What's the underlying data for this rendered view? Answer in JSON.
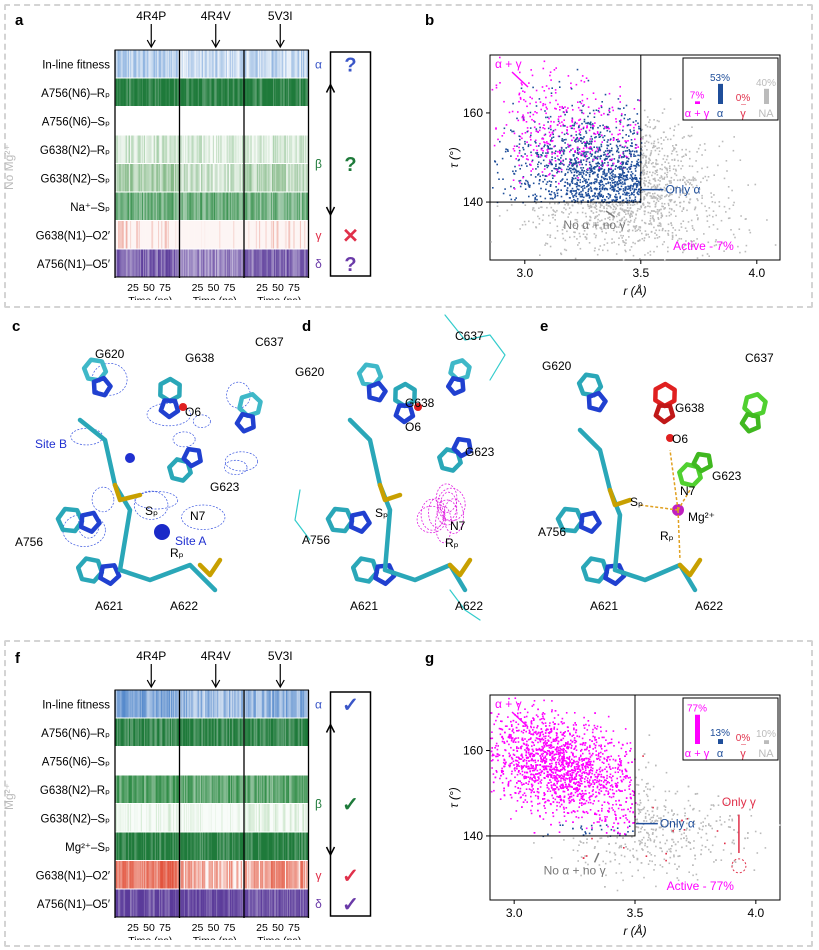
{
  "panel_labels": {
    "a": "a",
    "b": "b",
    "c": "c",
    "d": "d",
    "e": "e",
    "f": "f",
    "g": "g"
  },
  "side_labels": {
    "top": "No Mg²⁺",
    "bottom": "Mg²⁺"
  },
  "structures": [
    "4R4P",
    "4R4V",
    "5V3I"
  ],
  "panel_a": {
    "rows": [
      {
        "label": "In-line fitness",
        "color": "#3a7bc8"
      },
      {
        "label": "A756(N6)–Rₚ",
        "color": "#1e7a3a"
      },
      {
        "label": "A756(N6)–Sₚ",
        "color": "#ffffff"
      },
      {
        "label": "G638(N2)–Rₚ",
        "color": "#5aa55e"
      },
      {
        "label": "G638(N2)–Sₚ",
        "color": "#4e9a52"
      },
      {
        "label": "Na⁺–Sₚ",
        "color": "#2e8b45"
      },
      {
        "label": "G638(N1)–O2′",
        "color": "#d8402a"
      },
      {
        "label": "A756(N1)–O5′",
        "color": "#5b3b9a"
      }
    ],
    "greeks": [
      "α",
      "β",
      "γ",
      "δ"
    ],
    "status": [
      "?",
      "?",
      "✕",
      "?"
    ],
    "status_colors": [
      "#3a56c8",
      "#1e7a3a",
      "#e0304a",
      "#6a3aa8"
    ],
    "ticks": [
      "25",
      "50",
      "75"
    ],
    "xlabel": "Time (ns)"
  },
  "panel_f": {
    "rows": [
      {
        "label": "In-line fitness",
        "color": "#2f6fc0"
      },
      {
        "label": "A756(N6)–Rₚ",
        "color": "#1e7a3a"
      },
      {
        "label": "A756(N6)–Sₚ",
        "color": "#ffffff"
      },
      {
        "label": "G638(N2)–Rₚ",
        "color": "#2e8b45"
      },
      {
        "label": "G638(N2)–Sₚ",
        "color": "#7cc07e"
      },
      {
        "label": "Mg²⁺–Sₚ",
        "color": "#1e7a3a"
      },
      {
        "label": "G638(N1)–O2′",
        "color": "#e04a32"
      },
      {
        "label": "A756(N1)–O5′",
        "color": "#5b3b9a"
      }
    ],
    "greeks": [
      "α",
      "β",
      "γ",
      "δ"
    ],
    "status": [
      "✓",
      "✓",
      "✓",
      "✓"
    ],
    "status_colors": [
      "#3a56c8",
      "#1e7a3a",
      "#e0304a",
      "#6a3aa8"
    ],
    "ticks": [
      "25",
      "50",
      "75"
    ],
    "xlabel": "Time (ns)"
  },
  "chart_data": [
    {
      "type": "scatter",
      "panel": "b",
      "xlabel": "r (Å)",
      "ylabel": "τ (°)",
      "xlim": [
        2.85,
        4.1
      ],
      "ylim": [
        127,
        173
      ],
      "xticks": [
        "3.0",
        "3.5",
        "4.0"
      ],
      "yticks": [
        "140",
        "160"
      ],
      "annotations": {
        "alpha_gamma": "α + γ",
        "only_alpha": "Only α",
        "none": "No α + no γ",
        "active": "Active - 7%"
      },
      "inset": {
        "categories": [
          "α + γ",
          "α",
          "γ",
          "NA"
        ],
        "values": [
          7,
          53,
          0,
          40
        ],
        "labels": [
          "7%",
          "53%",
          "0%",
          "40%"
        ],
        "colors": [
          "#ff00ff",
          "#1f4e9a",
          "#e0304a",
          "#bbbbbb"
        ]
      }
    },
    {
      "type": "scatter",
      "panel": "g",
      "xlabel": "r (Å)",
      "ylabel": "τ (°)",
      "xlim": [
        2.9,
        4.1
      ],
      "ylim": [
        125,
        173
      ],
      "xticks": [
        "3.0",
        "3.5",
        "4.0"
      ],
      "yticks": [
        "140",
        "160"
      ],
      "annotations": {
        "alpha_gamma": "α + γ",
        "only_alpha": "Only α",
        "only_gamma": "Only γ",
        "none": "No α + no γ",
        "active": "Active - 77%"
      },
      "inset": {
        "categories": [
          "α + γ",
          "α",
          "γ",
          "NA"
        ],
        "values": [
          77,
          13,
          0,
          10
        ],
        "labels": [
          "77%",
          "13%",
          "0%",
          "10%"
        ],
        "colors": [
          "#ff00ff",
          "#1f4e9a",
          "#e0304a",
          "#bbbbbb"
        ]
      }
    }
  ],
  "panel_c": {
    "labels": [
      "G620",
      "G638",
      "O6",
      "C637",
      "Site B",
      "G623",
      "Sₚ",
      "N7",
      "A756",
      "Rₚ",
      "Site A",
      "A621",
      "A622"
    ]
  },
  "panel_d": {
    "labels": [
      "C637",
      "G620",
      "G638",
      "O6",
      "G623",
      "Sₚ",
      "N7",
      "A756",
      "Rₚ",
      "A621",
      "A622"
    ]
  },
  "panel_e": {
    "labels": [
      "G620",
      "C637",
      "G638",
      "O6",
      "G623",
      "Sₚ",
      "N7",
      "Mg²⁺",
      "A756",
      "Rₚ",
      "A621",
      "A622"
    ]
  }
}
